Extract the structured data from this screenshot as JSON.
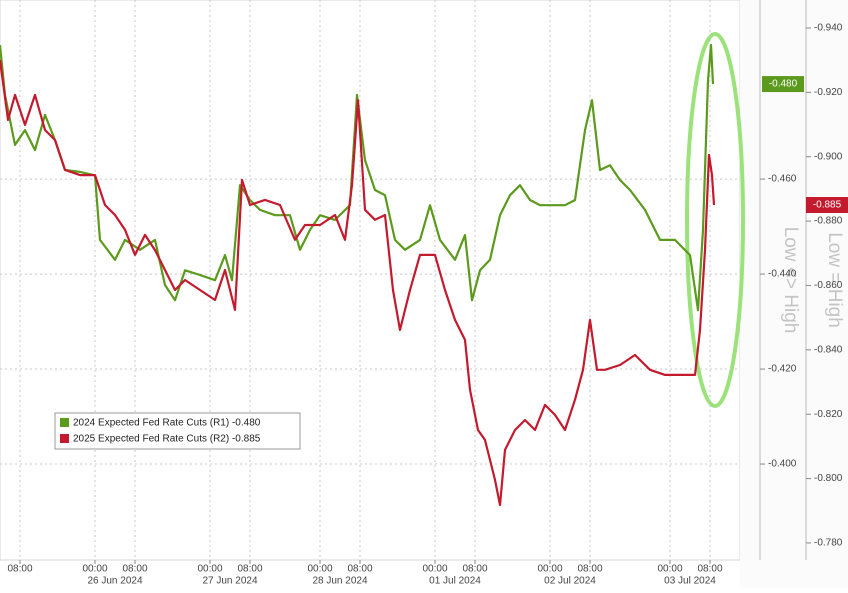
{
  "chart_data": {
    "type": "line",
    "xlim": [
      0,
      148
    ],
    "xticks": [
      {
        "value": 4,
        "label": "08:00"
      },
      {
        "value": 19,
        "label": "00:00"
      },
      {
        "value": 27,
        "label": "08:00"
      },
      {
        "value": 42,
        "label": "00:00"
      },
      {
        "value": 50,
        "label": "08:00"
      },
      {
        "value": 64,
        "label": "00:00"
      },
      {
        "value": 72,
        "label": "08:00"
      },
      {
        "value": 87,
        "label": "00:00"
      },
      {
        "value": 95,
        "label": "08:00"
      },
      {
        "value": 110,
        "label": "00:00"
      },
      {
        "value": 118,
        "label": "08:00"
      },
      {
        "value": 134,
        "label": "00:00"
      },
      {
        "value": 142,
        "label": "08:00"
      }
    ],
    "xtick_groups": [
      {
        "value": 23,
        "label": "26 Jun 2024"
      },
      {
        "value": 46,
        "label": "27 Jun 2024"
      },
      {
        "value": 68,
        "label": "28 Jun 2024"
      },
      {
        "value": 91,
        "label": "01 Jul 2024"
      },
      {
        "value": 114,
        "label": "02 Jul 2024"
      },
      {
        "value": 138,
        "label": "03 Jul 2024"
      }
    ],
    "ylim": [
      -0.3798,
      -0.4977
    ],
    "yticks": [
      {
        "value": -0.46,
        "label": "-0.460"
      },
      {
        "value": -0.44,
        "label": "-0.440"
      },
      {
        "value": -0.42,
        "label": "-0.420"
      },
      {
        "value": -0.4,
        "label": "-0.400"
      }
    ],
    "y2lim": [
      -0.7747,
      -0.9487
    ],
    "y2ticks": [
      {
        "value": -0.94,
        "label": "-0.940"
      },
      {
        "value": -0.92,
        "label": "-0.920"
      },
      {
        "value": -0.9,
        "label": "-0.900"
      },
      {
        "value": -0.88,
        "label": "-0.880"
      },
      {
        "value": -0.86,
        "label": "-0.860"
      },
      {
        "value": -0.84,
        "label": "-0.840"
      },
      {
        "value": -0.82,
        "label": "-0.820"
      },
      {
        "value": -0.8,
        "label": "-0.800"
      },
      {
        "value": -0.78,
        "label": "-0.780"
      }
    ],
    "grid": true,
    "legend": "lower left",
    "annotations": [
      "Low <> High",
      "Low = High"
    ],
    "series": [
      {
        "name": "2024 Expected Fed Rate Cuts (R1) -0.480",
        "color": "#5b9a1c",
        "axis": "y",
        "end_label": "-0.480",
        "x": [
          0,
          1,
          3,
          5,
          7,
          9,
          11,
          13,
          16,
          19,
          20,
          23,
          25,
          28,
          31,
          33,
          35,
          37,
          40,
          43,
          45,
          46.4,
          48,
          50,
          52,
          55,
          58,
          60,
          62,
          64,
          67,
          70,
          71.4,
          73,
          75,
          77,
          79,
          81,
          84,
          86,
          88,
          91,
          93,
          94.4,
          96,
          98,
          100,
          102,
          104,
          106,
          108,
          111,
          113,
          115,
          117,
          118.4,
          120,
          122,
          124,
          126,
          129,
          132,
          135,
          138,
          139.6,
          140.6,
          141.6,
          142.2,
          142.6
        ],
        "values": [
          -0.4882,
          -0.4777,
          -0.4672,
          -0.4703,
          -0.4661,
          -0.4735,
          -0.4682,
          -0.4619,
          -0.4615,
          -0.4608,
          -0.4472,
          -0.443,
          -0.4472,
          -0.4451,
          -0.4472,
          -0.4377,
          -0.4345,
          -0.4408,
          -0.4398,
          -0.4387,
          -0.444,
          -0.4387,
          -0.4587,
          -0.4556,
          -0.4535,
          -0.4524,
          -0.4524,
          -0.4451,
          -0.4493,
          -0.4524,
          -0.4514,
          -0.4545,
          -0.4777,
          -0.464,
          -0.4577,
          -0.4566,
          -0.4472,
          -0.4451,
          -0.4472,
          -0.4545,
          -0.4472,
          -0.443,
          -0.4482,
          -0.4345,
          -0.4408,
          -0.443,
          -0.4524,
          -0.4566,
          -0.4587,
          -0.4556,
          -0.4545,
          -0.4545,
          -0.4545,
          -0.4556,
          -0.4703,
          -0.4766,
          -0.4619,
          -0.4629,
          -0.4598,
          -0.4577,
          -0.4535,
          -0.4472,
          -0.4472,
          -0.444,
          -0.4324,
          -0.4493,
          -0.4808,
          -0.4882,
          -0.48
        ]
      },
      {
        "name": "2025 Expected Fed Rate Cuts (R2) -0.885",
        "color": "#c41a2e",
        "axis": "y2",
        "end_label": "-0.885",
        "x": [
          0,
          1.6,
          3,
          5,
          7,
          9,
          11,
          13,
          16,
          19,
          21,
          23,
          25,
          27,
          29,
          31,
          33,
          35,
          37,
          40,
          43,
          45,
          47,
          48.4,
          50,
          53,
          56,
          59,
          61,
          64,
          67,
          69,
          70.4,
          71.6,
          73,
          75,
          77,
          78.6,
          80,
          82,
          84,
          87,
          89,
          91,
          93,
          94,
          95.6,
          97,
          99,
          100,
          101,
          103,
          105,
          107,
          109,
          111,
          113,
          115,
          116.6,
          118,
          119.4,
          121,
          124,
          127,
          130,
          133,
          136,
          139,
          140,
          141,
          141.8,
          142.4,
          142.8
        ],
        "values": [
          -0.9301,
          -0.9114,
          -0.9192,
          -0.9099,
          -0.9192,
          -0.9083,
          -0.9052,
          -0.8959,
          -0.8943,
          -0.8943,
          -0.885,
          -0.8819,
          -0.8773,
          -0.8695,
          -0.8757,
          -0.871,
          -0.8648,
          -0.8586,
          -0.8617,
          -0.8586,
          -0.8555,
          -0.8648,
          -0.8524,
          -0.8928,
          -0.885,
          -0.8866,
          -0.885,
          -0.8742,
          -0.8788,
          -0.8788,
          -0.8819,
          -0.8742,
          -0.8912,
          -0.9176,
          -0.8835,
          -0.8804,
          -0.8819,
          -0.8586,
          -0.8462,
          -0.8586,
          -0.8695,
          -0.8695,
          -0.8586,
          -0.8493,
          -0.8431,
          -0.8276,
          -0.8151,
          -0.812,
          -0.7996,
          -0.7918,
          -0.8089,
          -0.8151,
          -0.8182,
          -0.8151,
          -0.8229,
          -0.8198,
          -0.8151,
          -0.8245,
          -0.8338,
          -0.8493,
          -0.8338,
          -0.8338,
          -0.8353,
          -0.8384,
          -0.8338,
          -0.8322,
          -0.8322,
          -0.8322,
          -0.8462,
          -0.871,
          -0.9006,
          -0.8943,
          -0.885
        ]
      }
    ]
  }
}
